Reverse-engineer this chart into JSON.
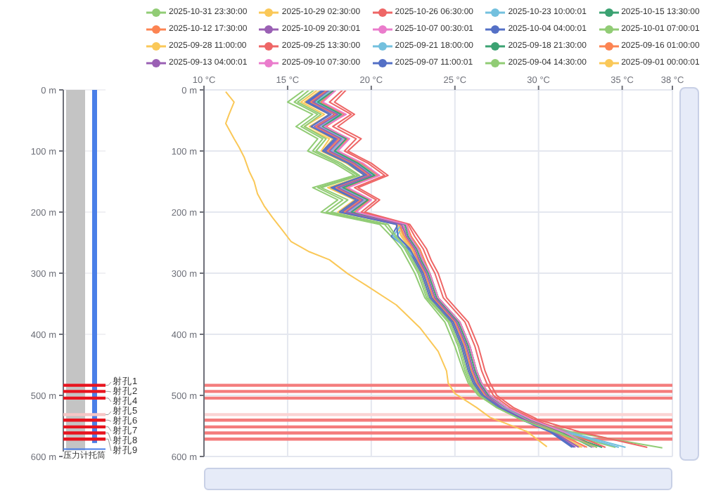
{
  "chart_data": [
    {
      "type": "bar",
      "categories": [
        null
      ],
      "series": [
        {
          "color": "#c4c4c4",
          "values": [
            590
          ]
        },
        {
          "color": "#4a7fe8",
          "values": [
            578
          ]
        }
      ],
      "ylim": [
        600,
        0
      ],
      "yticks": [
        {
          "value": 0,
          "label": "0 m"
        },
        {
          "value": 100,
          "label": "100 m"
        },
        {
          "value": 200,
          "label": "200 m"
        },
        {
          "value": 300,
          "label": "300 m"
        },
        {
          "value": 400,
          "label": "400 m"
        },
        {
          "value": 500,
          "label": "500 m"
        },
        {
          "value": 600,
          "label": "600 m"
        }
      ],
      "grid": "y",
      "bands": [
        {
          "axis": "y",
          "from": 481,
          "to": 486,
          "label": "射孔1",
          "color": "#e8141e"
        },
        {
          "axis": "y",
          "from": 491,
          "to": 496,
          "label": "射孔2",
          "color": "#e8141e"
        },
        {
          "axis": "y",
          "from": 502,
          "to": 507,
          "label": "射孔4",
          "color": "#e8141e"
        },
        {
          "axis": "y",
          "from": 529,
          "to": 534,
          "label": "射孔5",
          "color": "#f7c6c6"
        },
        {
          "axis": "y",
          "from": 538,
          "to": 543,
          "label": "射孔6",
          "color": "#e8141e"
        },
        {
          "axis": "y",
          "from": 549,
          "to": 554,
          "label": "射孔7",
          "color": "#e8141e"
        },
        {
          "axis": "y",
          "from": 559,
          "to": 564,
          "label": "射孔8",
          "color": "#e8141e"
        },
        {
          "axis": "y",
          "from": 569,
          "to": 574,
          "label": "射孔9",
          "color": "#e8141e"
        }
      ],
      "ref_lines": [
        {
          "axis": "y",
          "value": 588,
          "label": "压力计托筒",
          "color": "#4a7fe8"
        }
      ]
    },
    {
      "type": "line",
      "xlim": [
        10,
        38
      ],
      "xticks": [
        {
          "value": 10,
          "label": "10 °C"
        },
        {
          "value": 15,
          "label": "15 °C"
        },
        {
          "value": 20,
          "label": "20 °C"
        },
        {
          "value": 25,
          "label": "25 °C"
        },
        {
          "value": 30,
          "label": "30 °C"
        },
        {
          "value": 35,
          "label": "35 °C"
        },
        {
          "value": 38,
          "label": "38 °C"
        }
      ],
      "ylim": [
        600,
        0
      ],
      "yticks": [
        {
          "value": 0,
          "label": "0 m"
        },
        {
          "value": 100,
          "label": "100 m"
        },
        {
          "value": 200,
          "label": "200 m"
        },
        {
          "value": 300,
          "label": "300 m"
        },
        {
          "value": 400,
          "label": "400 m"
        },
        {
          "value": 500,
          "label": "500 m"
        },
        {
          "value": 600,
          "label": "600 m"
        }
      ],
      "grid": true,
      "legend": "top",
      "bands": [
        {
          "axis": "y",
          "from": 481,
          "to": 486,
          "color": "#f47c7c"
        },
        {
          "axis": "y",
          "from": 491,
          "to": 496,
          "color": "#f47c7c"
        },
        {
          "axis": "y",
          "from": 502,
          "to": 507,
          "color": "#f47c7c"
        },
        {
          "axis": "y",
          "from": 529,
          "to": 534,
          "color": "#fbd3d3"
        },
        {
          "axis": "y",
          "from": 538,
          "to": 543,
          "color": "#f47c7c"
        },
        {
          "axis": "y",
          "from": 549,
          "to": 554,
          "color": "#f47c7c"
        },
        {
          "axis": "y",
          "from": 559,
          "to": 564,
          "color": "#f47c7c"
        },
        {
          "axis": "y",
          "from": 569,
          "to": 574,
          "color": "#f47c7c"
        }
      ],
      "series": [
        {
          "name": "2025-10-31 23:30:00",
          "color": "#91cc75",
          "x": [
            16,
            15,
            16.5,
            15.5,
            16.8,
            16.2,
            17.8,
            19,
            16.5,
            18,
            17,
            20.5,
            21.2,
            21.8,
            22.2,
            22.6,
            23.2,
            24.4,
            25,
            25.5,
            25.8,
            26.4,
            27.6,
            29.5,
            32,
            37.4
          ],
          "values": [
            0,
            20,
            40,
            60,
            80,
            100,
            120,
            140,
            160,
            180,
            200,
            220,
            240,
            260,
            280,
            300,
            340,
            380,
            420,
            460,
            480,
            500,
            520,
            540,
            560,
            586
          ]
        },
        {
          "name": "2025-10-29 02:30:00",
          "color": "#fac858",
          "x": [
            16.8,
            15.8,
            17.2,
            16,
            17.5,
            17,
            18.5,
            19.6,
            17.4,
            19,
            18,
            21.5,
            21.8,
            22.3,
            22.6,
            23,
            23.5,
            24.8,
            25.4,
            25.8,
            26.1,
            26.6,
            27.6,
            29,
            30.8,
            32.5
          ],
          "values": [
            0,
            20,
            40,
            60,
            80,
            100,
            120,
            140,
            160,
            180,
            200,
            220,
            240,
            260,
            280,
            300,
            340,
            380,
            420,
            460,
            480,
            500,
            520,
            540,
            560,
            585
          ]
        },
        {
          "name": "2025-10-26 06:30:00",
          "color": "#ee6666",
          "x": [
            18.5,
            17.8,
            19,
            18,
            19.4,
            18.6,
            20,
            21,
            19.2,
            20.5,
            19.6,
            22.3,
            22.8,
            23.3,
            23.6,
            24,
            24.5,
            25.8,
            26.4,
            26.8,
            27.1,
            27.5,
            28.5,
            30,
            32.5,
            36.5
          ],
          "values": [
            0,
            20,
            40,
            60,
            80,
            100,
            120,
            140,
            160,
            180,
            200,
            220,
            240,
            260,
            280,
            300,
            340,
            380,
            420,
            460,
            480,
            500,
            520,
            540,
            560,
            585
          ]
        },
        {
          "name": "2025-10-23 10:00:01",
          "color": "#73c0de",
          "x": [
            17.8,
            16.9,
            18.3,
            17.1,
            18.5,
            17.9,
            19.3,
            20.3,
            18.4,
            19.8,
            18.9,
            22,
            21.5,
            22.3,
            22.9,
            23.3,
            23.8,
            25.1,
            25.7,
            26.1,
            26.4,
            26.9,
            28,
            29.6,
            31.8,
            35.2
          ],
          "values": [
            0,
            20,
            40,
            60,
            80,
            100,
            120,
            140,
            160,
            180,
            200,
            220,
            240,
            260,
            280,
            300,
            340,
            380,
            420,
            460,
            480,
            500,
            520,
            540,
            560,
            585
          ]
        },
        {
          "name": "2025-10-15 13:30:00",
          "color": "#3ba272",
          "x": [
            17.6,
            16.6,
            18.1,
            16.9,
            18.3,
            17.6,
            19.1,
            20.1,
            18.1,
            19.6,
            18.6,
            21.9,
            22.2,
            22.7,
            23,
            23.4,
            23.9,
            25.2,
            25.8,
            26.2,
            26.5,
            27,
            28,
            29.4,
            31.2,
            33.8
          ],
          "values": [
            0,
            20,
            40,
            60,
            80,
            100,
            120,
            140,
            160,
            180,
            200,
            220,
            240,
            260,
            280,
            300,
            340,
            380,
            420,
            460,
            480,
            500,
            520,
            540,
            560,
            585
          ]
        },
        {
          "name": "2025-10-12 17:30:00",
          "color": "#fc8452",
          "x": [
            17.9,
            17,
            18.4,
            17.3,
            18.6,
            18,
            19.4,
            20.4,
            18.5,
            19.9,
            19,
            22.1,
            22.4,
            22.9,
            23.2,
            23.5,
            24,
            25.3,
            25.9,
            26.3,
            26.6,
            27.1,
            28.1,
            29.5,
            31.3,
            33.5
          ],
          "values": [
            0,
            20,
            40,
            60,
            80,
            100,
            120,
            140,
            160,
            180,
            200,
            220,
            240,
            260,
            280,
            300,
            340,
            380,
            420,
            460,
            480,
            500,
            520,
            540,
            560,
            585
          ]
        },
        {
          "name": "2025-10-09 20:30:01",
          "color": "#9a60b4",
          "x": [
            17.3,
            16.3,
            17.8,
            16.6,
            18,
            17.3,
            18.8,
            19.8,
            17.8,
            19.3,
            18.3,
            21.7,
            21.9,
            22.4,
            22.7,
            23.1,
            23.6,
            24.9,
            25.5,
            25.9,
            26.2,
            26.7,
            27.7,
            29.1,
            30.8,
            32.2
          ],
          "values": [
            0,
            20,
            40,
            60,
            80,
            100,
            120,
            140,
            160,
            180,
            200,
            220,
            240,
            260,
            280,
            300,
            340,
            380,
            420,
            460,
            480,
            500,
            520,
            540,
            560,
            585
          ]
        },
        {
          "name": "2025-10-07 00:30:01",
          "color": "#ea7ccc",
          "x": [
            17.7,
            16.8,
            18.2,
            17,
            18.4,
            17.7,
            19.2,
            20.2,
            18.2,
            19.7,
            18.7,
            21.9,
            22.1,
            22.6,
            22.9,
            23.3,
            23.8,
            25.1,
            25.7,
            26.1,
            26.4,
            26.9,
            27.9,
            29.3,
            31.1,
            32.8
          ],
          "values": [
            0,
            20,
            40,
            60,
            80,
            100,
            120,
            140,
            160,
            180,
            200,
            220,
            240,
            260,
            280,
            300,
            340,
            380,
            420,
            460,
            480,
            500,
            520,
            540,
            560,
            585
          ]
        },
        {
          "name": "2025-10-04 04:00:01",
          "color": "#5470c6",
          "x": [
            17.2,
            16.2,
            17.6,
            16.4,
            17.9,
            17.2,
            18.7,
            19.7,
            17.7,
            19.2,
            18.2,
            21.6,
            21.2,
            22.2,
            22.6,
            23,
            23.5,
            24.8,
            25.4,
            25.8,
            26.1,
            26.6,
            27.6,
            29,
            30.7,
            32
          ],
          "values": [
            0,
            20,
            40,
            60,
            80,
            100,
            120,
            140,
            160,
            180,
            200,
            220,
            240,
            260,
            280,
            300,
            340,
            380,
            420,
            460,
            480,
            500,
            520,
            540,
            560,
            585
          ]
        },
        {
          "name": "2025-10-01 07:00:01",
          "color": "#91cc75",
          "x": [
            16.3,
            15.4,
            16.8,
            15.8,
            17.1,
            16.5,
            18,
            19.2,
            16.8,
            18.3,
            17.3,
            20.8,
            21.4,
            22,
            22.4,
            22.8,
            23.3,
            24.6,
            25.2,
            25.6,
            25.9,
            26.4,
            27.5,
            29,
            31.2,
            34.6
          ],
          "values": [
            0,
            20,
            40,
            60,
            80,
            100,
            120,
            140,
            160,
            180,
            200,
            220,
            240,
            260,
            280,
            300,
            340,
            380,
            420,
            460,
            480,
            500,
            520,
            540,
            560,
            585
          ]
        },
        {
          "name": "2025-09-28 11:00:00",
          "color": "#fac858",
          "x": [
            17,
            16,
            17.5,
            16.3,
            17.7,
            17.1,
            18.6,
            19.6,
            17.5,
            19.1,
            18.1,
            21.6,
            21.9,
            22.4,
            22.7,
            23.1,
            23.6,
            24.9,
            25.5,
            25.9,
            26.2,
            26.7,
            27.7,
            29.1,
            30.9,
            32.6
          ],
          "values": [
            0,
            20,
            40,
            60,
            80,
            100,
            120,
            140,
            160,
            180,
            200,
            220,
            240,
            260,
            280,
            300,
            340,
            380,
            420,
            460,
            480,
            500,
            520,
            540,
            560,
            585
          ]
        },
        {
          "name": "2025-09-25 13:30:00",
          "color": "#ee6666",
          "x": [
            18.3,
            17.5,
            18.8,
            17.7,
            19.1,
            18.4,
            19.8,
            20.8,
            19,
            20.3,
            19.4,
            22.2,
            22.6,
            23.1,
            23.4,
            23.8,
            24.3,
            25.6,
            26.2,
            26.6,
            26.9,
            27.3,
            28.3,
            29.8,
            31.7,
            34
          ],
          "values": [
            0,
            20,
            40,
            60,
            80,
            100,
            120,
            140,
            160,
            180,
            200,
            220,
            240,
            260,
            280,
            300,
            340,
            380,
            420,
            460,
            480,
            500,
            520,
            540,
            560,
            585
          ]
        },
        {
          "name": "2025-09-21 18:00:00",
          "color": "#73c0de",
          "x": [
            17.6,
            16.7,
            18.1,
            16.9,
            18.3,
            17.6,
            19.1,
            20.1,
            18.1,
            19.6,
            18.6,
            21.8,
            21.3,
            22.1,
            22.8,
            23.2,
            23.7,
            25,
            25.6,
            26,
            26.3,
            26.8,
            27.9,
            29.5,
            31.6,
            34.8
          ],
          "values": [
            0,
            20,
            40,
            60,
            80,
            100,
            120,
            140,
            160,
            180,
            200,
            220,
            240,
            260,
            280,
            300,
            340,
            380,
            420,
            460,
            480,
            500,
            520,
            540,
            560,
            585
          ]
        },
        {
          "name": "2025-09-18 21:30:00",
          "color": "#3ba272",
          "x": [
            17.8,
            16.8,
            18.2,
            17.1,
            18.5,
            17.8,
            19.2,
            20.2,
            18.3,
            19.8,
            18.8,
            22,
            22.3,
            22.8,
            23.1,
            23.5,
            24,
            25.3,
            25.9,
            26.3,
            26.6,
            27.1,
            28.1,
            29.5,
            31.4,
            33.2
          ],
          "values": [
            0,
            20,
            40,
            60,
            80,
            100,
            120,
            140,
            160,
            180,
            200,
            220,
            240,
            260,
            280,
            300,
            340,
            380,
            420,
            460,
            480,
            500,
            520,
            540,
            560,
            585
          ]
        },
        {
          "name": "2025-09-16 01:00:00",
          "color": "#fc8452",
          "x": [
            17.4,
            16.4,
            17.9,
            16.7,
            18.1,
            17.4,
            18.9,
            19.9,
            17.9,
            19.4,
            18.4,
            21.7,
            22,
            22.5,
            22.8,
            23.2,
            23.7,
            25,
            25.6,
            26,
            26.3,
            26.8,
            27.8,
            29.2,
            31,
            32.9
          ],
          "values": [
            0,
            20,
            40,
            60,
            80,
            100,
            120,
            140,
            160,
            180,
            200,
            220,
            240,
            260,
            280,
            300,
            340,
            380,
            420,
            460,
            480,
            500,
            520,
            540,
            560,
            585
          ]
        },
        {
          "name": "2025-09-13 04:00:01",
          "color": "#9a60b4",
          "x": [
            17.5,
            16.5,
            18,
            16.8,
            18.2,
            17.5,
            19,
            20,
            18,
            19.5,
            18.5,
            21.8,
            22.1,
            22.6,
            22.9,
            23.3,
            23.8,
            25.1,
            25.7,
            26.1,
            26.4,
            26.9,
            27.8,
            29.2,
            30.9,
            32.4
          ],
          "values": [
            0,
            20,
            40,
            60,
            80,
            100,
            120,
            140,
            160,
            180,
            200,
            220,
            240,
            260,
            280,
            300,
            340,
            380,
            420,
            460,
            480,
            500,
            520,
            540,
            560,
            585
          ]
        },
        {
          "name": "2025-09-10 07:30:00",
          "color": "#ea7ccc",
          "x": [
            17.9,
            17.1,
            18.5,
            17.2,
            18.7,
            18,
            19.5,
            20.5,
            18.6,
            20,
            19.1,
            22.1,
            22.3,
            22.8,
            23.1,
            23.5,
            24,
            25.3,
            25.9,
            26.3,
            26.6,
            27.1,
            28.1,
            29.6,
            31.5,
            33.3
          ],
          "values": [
            0,
            20,
            40,
            60,
            80,
            100,
            120,
            140,
            160,
            180,
            200,
            220,
            240,
            260,
            280,
            300,
            340,
            380,
            420,
            460,
            480,
            500,
            520,
            540,
            560,
            585
          ]
        },
        {
          "name": "2025-09-07 11:00:01",
          "color": "#5470c6",
          "x": [
            17.1,
            16.1,
            17.5,
            16.4,
            17.8,
            17.1,
            18.6,
            19.6,
            17.6,
            19.1,
            18.1,
            21.5,
            21.6,
            22.3,
            22.7,
            23.1,
            23.6,
            24.9,
            25.5,
            25.9,
            26.2,
            26.7,
            27.7,
            29.1,
            30.8,
            32.1
          ],
          "values": [
            0,
            20,
            40,
            60,
            80,
            100,
            120,
            140,
            160,
            180,
            200,
            220,
            240,
            260,
            280,
            300,
            340,
            380,
            420,
            460,
            480,
            500,
            520,
            540,
            560,
            585
          ]
        },
        {
          "name": "2025-09-04 14:30:00",
          "color": "#91cc75",
          "x": [
            16.6,
            15.6,
            17,
            16,
            17.3,
            16.7,
            18.2,
            19.3,
            17,
            18.6,
            17.6,
            21,
            21.5,
            22.1,
            22.5,
            22.9,
            23.4,
            24.7,
            25.3,
            25.7,
            26,
            26.5,
            27.5,
            29,
            31,
            33.5
          ],
          "values": [
            0,
            20,
            40,
            60,
            80,
            100,
            120,
            140,
            160,
            180,
            200,
            220,
            240,
            260,
            280,
            300,
            340,
            380,
            420,
            460,
            480,
            500,
            520,
            540,
            560,
            585
          ]
        },
        {
          "name": "2025-09-01 00:00:01",
          "color": "#fac858",
          "x": [
            11.3,
            11.8,
            11.5,
            11.3,
            11.8,
            12.1,
            12.4,
            12.7,
            13,
            13.2,
            13.6,
            14.1,
            14.7,
            15.2,
            16.3,
            17.5,
            18.6,
            19.7,
            21.5,
            22.9,
            24,
            24.5,
            24.6,
            25,
            26.3,
            27.1,
            29.3,
            30.5
          ],
          "values": [
            3,
            20,
            40,
            55,
            80,
            94,
            110,
            133,
            150,
            170,
            190,
            209,
            230,
            248,
            265,
            278,
            301,
            320,
            352,
            389,
            428,
            460,
            480,
            497,
            520,
            536,
            559,
            584
          ]
        }
      ]
    }
  ]
}
